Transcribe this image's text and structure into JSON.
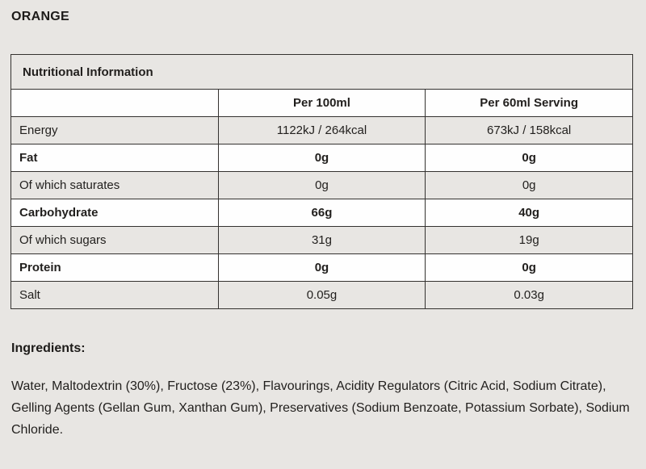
{
  "page": {
    "title": "ORANGE",
    "background_color": "#e8e6e3",
    "text_color": "#211f1d",
    "border_color": "#343230",
    "row_alt_color": "#fefefe"
  },
  "nutrition_table": {
    "header": "Nutritional Information",
    "columns": [
      "",
      "Per 100ml",
      "Per 60ml Serving"
    ],
    "rows": [
      {
        "label": "Energy",
        "per_100ml": "1122kJ / 264kcal",
        "per_serving": "673kJ / 158kcal",
        "bold": false
      },
      {
        "label": "Fat",
        "per_100ml": "0g",
        "per_serving": "0g",
        "bold": true
      },
      {
        "label": "Of which saturates",
        "per_100ml": "0g",
        "per_serving": "0g",
        "bold": false
      },
      {
        "label": "Carbohydrate",
        "per_100ml": "66g",
        "per_serving": "40g",
        "bold": true
      },
      {
        "label": "Of which sugars",
        "per_100ml": "31g",
        "per_serving": "19g",
        "bold": false
      },
      {
        "label": "Protein",
        "per_100ml": "0g",
        "per_serving": "0g",
        "bold": true
      },
      {
        "label": "Salt",
        "per_100ml": "0.05g",
        "per_serving": "0.03g",
        "bold": false
      }
    ]
  },
  "ingredients": {
    "heading": "Ingredients:",
    "text": "Water, Maltodextrin (30%), Fructose (23%), Flavourings, Acidity Regulators (Citric Acid, Sodium Citrate), Gelling Agents (Gellan Gum, Xanthan Gum), Preservatives (Sodium Benzoate, Potassium Sorbate), Sodium Chloride."
  }
}
